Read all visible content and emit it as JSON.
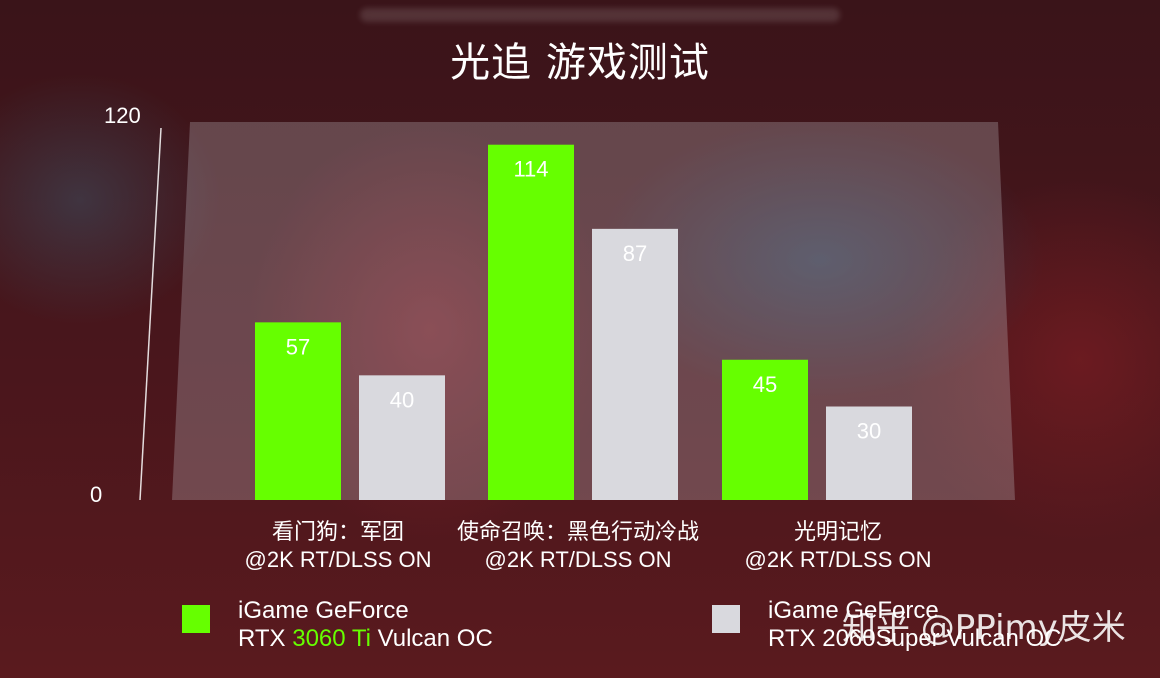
{
  "title": "光追 游戏测试",
  "watermark": "知乎 @PPimy皮米",
  "colors": {
    "series1": "#66ff00",
    "series2": "#d9d9de",
    "highlight": "#66ff00"
  },
  "legend": [
    {
      "line1": "iGame GeForce",
      "line2_pre": "RTX ",
      "line2_hl": "3060 Ti",
      "line2_post": " Vulcan OC"
    },
    {
      "line1": "iGame GeForce",
      "line2": "RTX 2060Super Vulcan OC"
    }
  ],
  "chart_data": {
    "type": "bar",
    "title": "光追 游戏测试",
    "categories": [
      {
        "line1": "看门狗：军团",
        "line2": "@2K RT/DLSS ON"
      },
      {
        "line1": "使命召唤：黑色行动冷战",
        "line2": "@2K RT/DLSS ON"
      },
      {
        "line1": "光明记忆",
        "line2": "@2K RT/DLSS ON"
      }
    ],
    "series": [
      {
        "name": "iGame GeForce RTX 3060 Ti Vulcan OC",
        "values": [
          57,
          114,
          45
        ]
      },
      {
        "name": "iGame GeForce RTX 2060Super Vulcan OC",
        "values": [
          40,
          87,
          30
        ]
      }
    ],
    "ylim": [
      0,
      120
    ],
    "yticks": [
      "0",
      "120"
    ],
    "legend_position": "bottom",
    "grid": false
  }
}
